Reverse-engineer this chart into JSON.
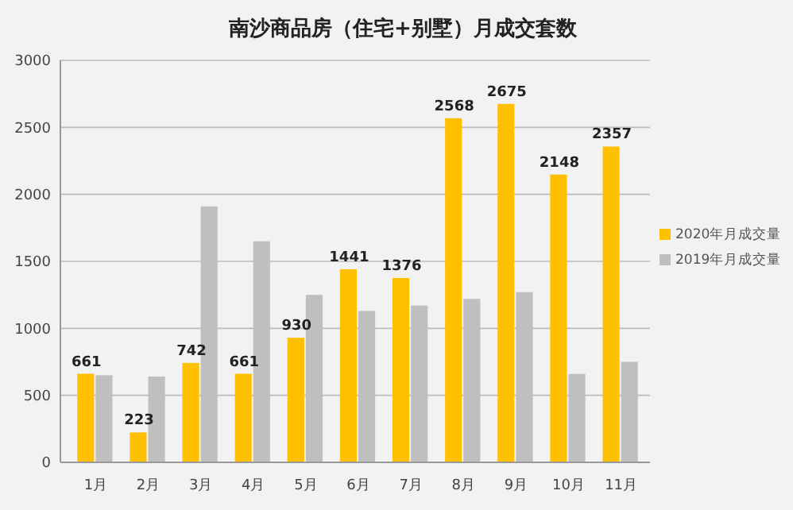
{
  "chart_data": {
    "type": "bar",
    "title": "南沙商品房（住宅+别墅）月成交套数",
    "categories": [
      "1月",
      "2月",
      "3月",
      "4月",
      "5月",
      "6月",
      "7月",
      "8月",
      "9月",
      "10月",
      "11月"
    ],
    "series": [
      {
        "name": "2020年月成交量",
        "color": "#ffc000",
        "values": [
          661,
          223,
          742,
          661,
          930,
          1441,
          1376,
          2568,
          2675,
          2148,
          2357
        ],
        "value_labels": [
          "661",
          "223",
          "742",
          "661",
          "930",
          "1441",
          "1376",
          "2568",
          "2675",
          "2148",
          "2357"
        ]
      },
      {
        "name": "2019年月成交量",
        "color": "#bfbfbf",
        "values": [
          650,
          640,
          1910,
          1650,
          1250,
          1130,
          1170,
          1220,
          1270,
          660,
          750
        ]
      }
    ],
    "ylim": [
      0,
      3000
    ],
    "yticks": [
      0,
      500,
      1000,
      1500,
      2000,
      2500,
      3000
    ],
    "grid": "y",
    "legend": "right"
  }
}
